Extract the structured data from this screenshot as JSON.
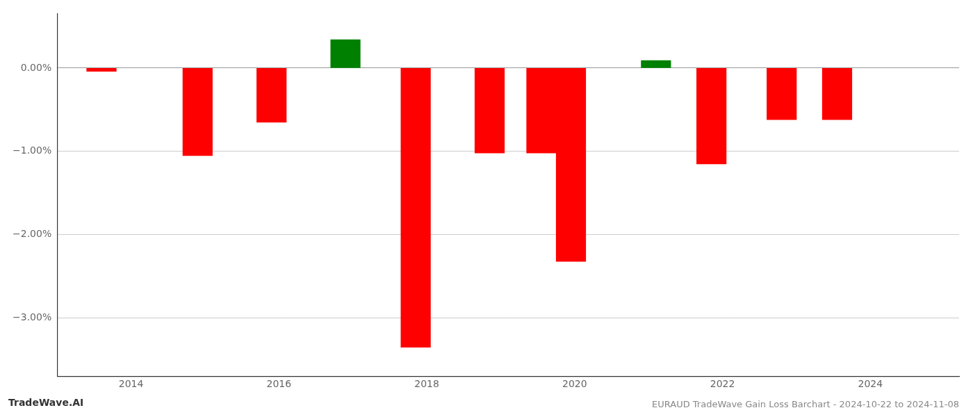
{
  "chart_data": {
    "type": "bar",
    "title": "EURAUD TradeWave Gain Loss Barchart - 2024-10-22 to 2024-11-08",
    "annotations": [
      "TradeWave.AI"
    ],
    "x": [
      2013.6,
      2014.9,
      2015.9,
      2016.9,
      2017.85,
      2018.85,
      2019.55,
      2019.95,
      2021.1,
      2021.85,
      2022.8,
      2023.55
    ],
    "values": [
      -0.04,
      -1.05,
      -0.65,
      0.34,
      -3.35,
      -1.02,
      -1.02,
      -2.32,
      0.09,
      -1.15,
      -0.62,
      -0.62
    ],
    "colors": [
      "#ff0000",
      "#ff0000",
      "#ff0000",
      "#008000",
      "#ff0000",
      "#ff0000",
      "#ff0000",
      "#ff0000",
      "#008000",
      "#ff0000",
      "#ff0000",
      "#ff0000"
    ],
    "xlim": [
      2013.0,
      2025.2
    ],
    "xticks": [
      2014,
      2016,
      2018,
      2020,
      2022,
      2024
    ],
    "ylim": [
      -3.7,
      0.65
    ],
    "yticks": [
      {
        "value": 0.0,
        "label": "0.00%"
      },
      {
        "value": -1.0,
        "label": "−1.00%"
      },
      {
        "value": -2.0,
        "label": "−2.00%"
      },
      {
        "value": -3.0,
        "label": "−3.00%"
      }
    ],
    "grid": true
  }
}
